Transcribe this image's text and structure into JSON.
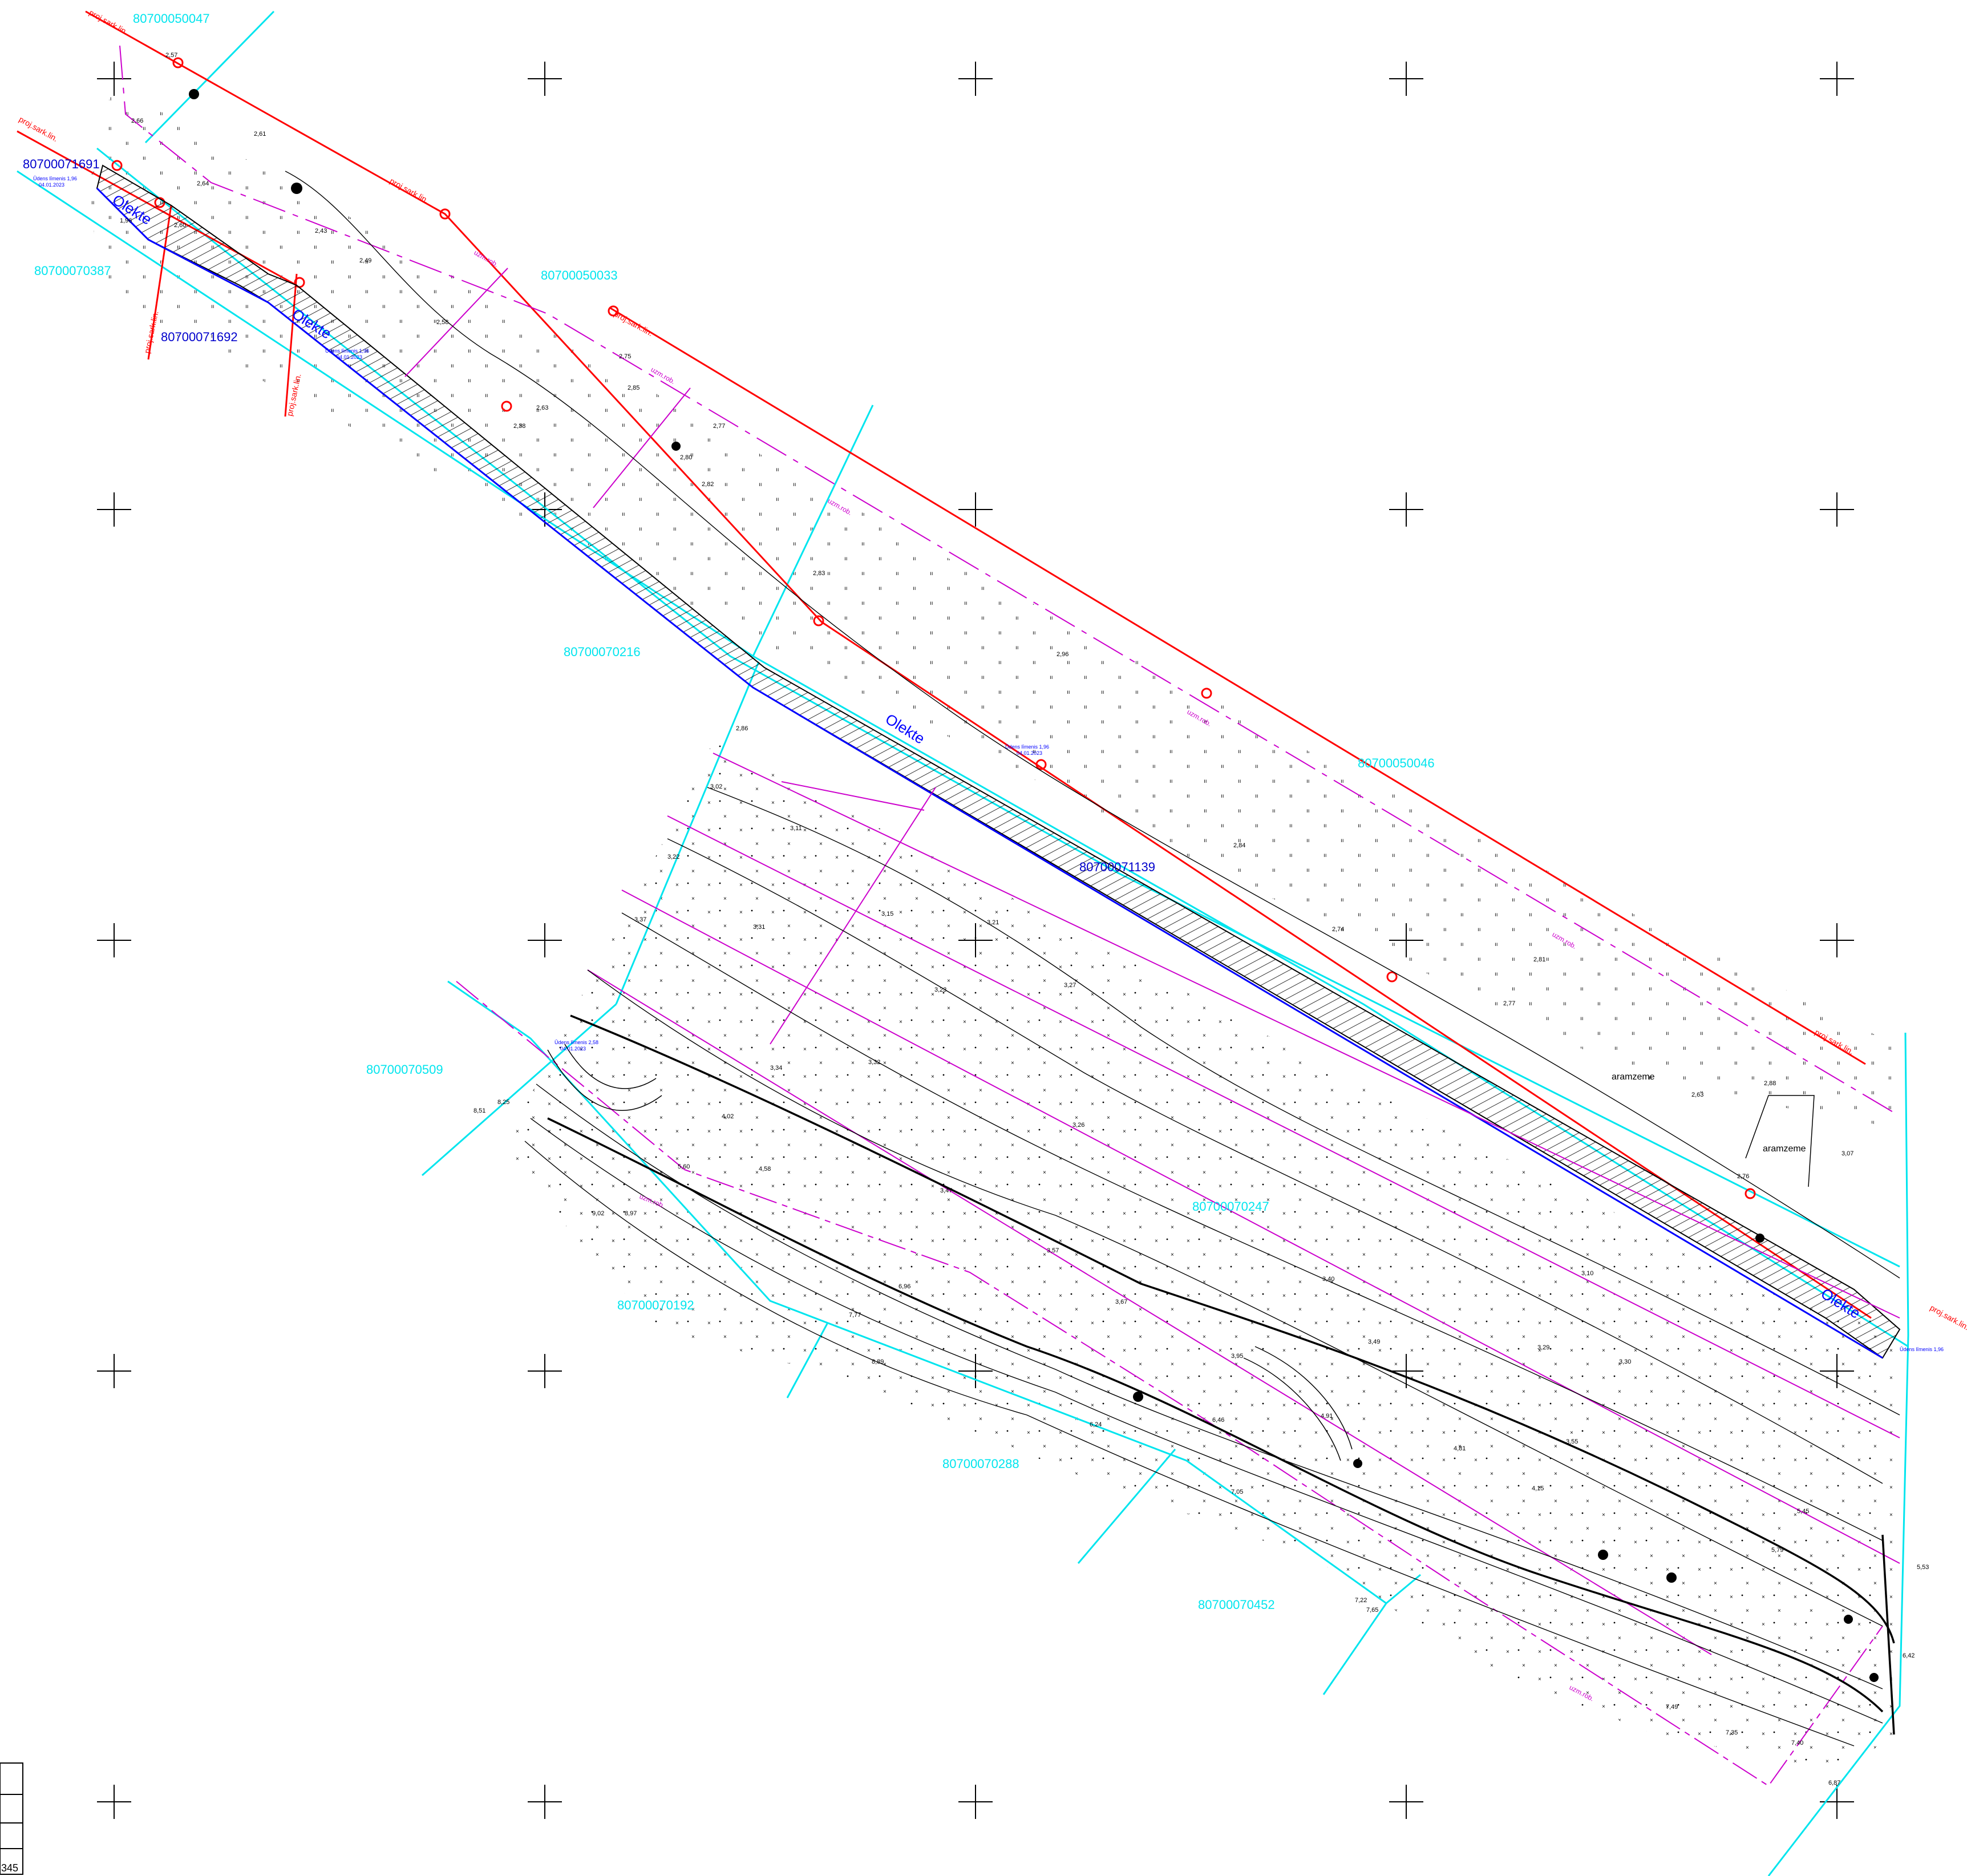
{
  "parcels": {
    "p1": "80700050047",
    "p2": "80700070387",
    "p3": "80700050033",
    "p4": "80700070216",
    "p5": "80700050046",
    "p6": "80700070509",
    "p7": "80700070247",
    "p8": "80700070192",
    "p9": "80700070288",
    "p10": "80700070452"
  },
  "ditches": {
    "d1": "80700071691",
    "d2": "80700071692",
    "d3": "80700071139"
  },
  "labels": {
    "olekte": "Olekte",
    "proj_sark_lin": "proj.sark.lin.",
    "uzmurob": "uzm.rob.",
    "aramzeme": "aramzeme",
    "odens_limenis_1": "Ūdens līmenis 1,96",
    "odens_limenis_2": "Ūdens līmenis 2,58",
    "date": "04.01.2023"
  },
  "frame_text": "345",
  "elevations": {
    "e1": "2,57",
    "e2": "2,66",
    "e3": "2,61",
    "e4": "2,64",
    "e5": "2,60",
    "e6": "1,96",
    "e7": "2,43",
    "e8": "2,49",
    "e9": "2,38",
    "e10": "2,58",
    "e11": "2,75",
    "e12": "2,85",
    "e13": "2,63",
    "e14": "2,77",
    "e15": "2,80",
    "e16": "2,82",
    "e17": "2,83",
    "e18": "2,86",
    "e19": "2,96",
    "e20": "3,02",
    "e21": "3,11",
    "e22": "3,22",
    "e23": "3,37",
    "e24": "3,31",
    "e25": "3,15",
    "e26": "3,21",
    "e27": "3,23",
    "e28": "3,27",
    "e29": "3,32",
    "e30": "3,34",
    "e31": "3,26",
    "e32": "3,57",
    "e33": "3,67",
    "e34": "3,47",
    "e35": "3,95",
    "e36": "4,02",
    "e37": "4,58",
    "e38": "5,60",
    "e39": "6,96",
    "e40": "7,77",
    "e41": "8,25",
    "e42": "8,51",
    "e43": "9,02",
    "e44": "8,97",
    "e45": "8,89",
    "e46": "6,24",
    "e47": "6,46",
    "e48": "7,05",
    "e49": "7,22",
    "e50": "7,65",
    "e51": "2,84",
    "e52": "2,74",
    "e53": "2,81",
    "e54": "2,77",
    "e55": "2,63",
    "e56": "2,76",
    "e57": "2,88",
    "e58": "3,07",
    "e59": "3,40",
    "e60": "3,49",
    "e61": "3,29",
    "e62": "3,30",
    "e63": "3,10",
    "e64": "3,55",
    "e65": "4,15",
    "e66": "4,81",
    "e67": "5,45",
    "e68": "5,79",
    "e69": "5,53",
    "e70": "6,42",
    "e71": "7,49",
    "e72": "7,35",
    "e73": "7,40",
    "e74": "6,87",
    "e75": "4,91"
  }
}
